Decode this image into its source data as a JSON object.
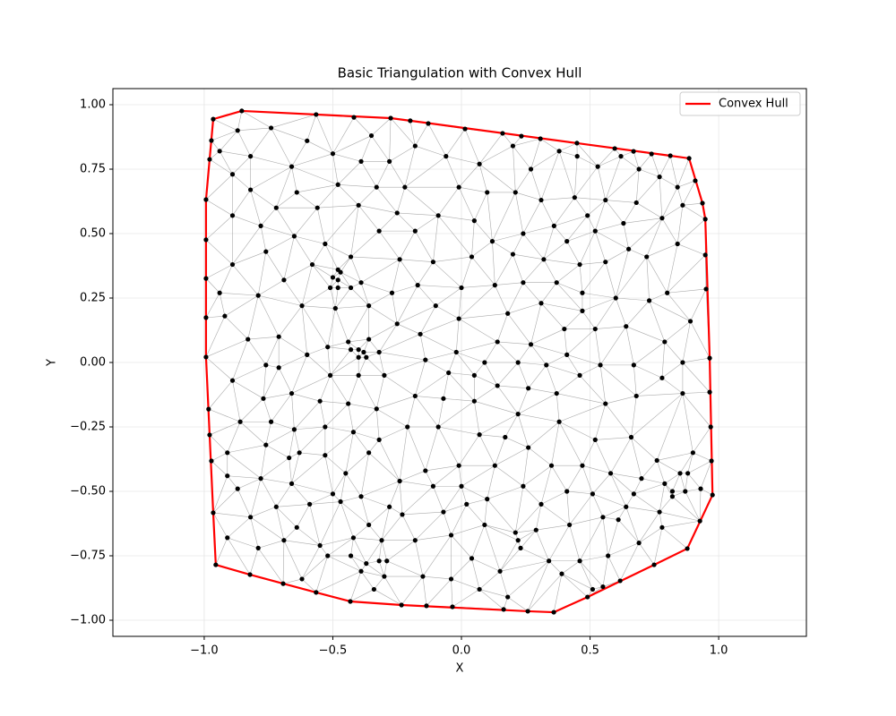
{
  "chart_data": {
    "type": "scatter",
    "title": "Basic Triangulation with Convex Hull",
    "xlabel": "X",
    "ylabel": "Y",
    "x": [
      -0.965,
      -0.854,
      -0.565,
      -0.418,
      -0.275,
      -0.199,
      -0.129,
      0.014,
      0.16,
      0.233,
      0.307,
      0.449,
      0.596,
      0.669,
      0.739,
      0.812,
      0.885,
      0.909,
      0.937,
      0.948,
      0.948,
      0.951,
      0.965,
      0.965,
      0.969,
      0.972,
      0.976,
      0.927,
      0.878,
      0.749,
      0.617,
      0.359,
      0.258,
      0.164,
      -0.035,
      -0.136,
      -0.233,
      -0.432,
      -0.565,
      -0.693,
      -0.822,
      -0.955,
      -0.965,
      -0.972,
      -0.979,
      -0.983,
      -0.993,
      -0.993,
      -0.993,
      -0.993,
      -0.993,
      -0.979,
      -0.972,
      -0.87,
      -0.74,
      -0.6,
      -0.35,
      -0.18,
      0.2,
      -0.5,
      -0.94,
      -0.82,
      -0.66,
      -0.39,
      -0.28,
      -0.06,
      0.07,
      0.27,
      0.38,
      0.45,
      0.53,
      0.62,
      0.69,
      0.77,
      0.84,
      -0.89,
      -0.48,
      -0.33,
      -0.22,
      -0.01,
      0.1,
      0.21,
      0.31,
      0.44,
      0.56,
      0.68,
      0.86,
      -0.82,
      -0.64,
      -0.72,
      -0.56,
      -0.4,
      -0.25,
      -0.09,
      0.05,
      -0.89,
      -0.78,
      0.24,
      0.36,
      0.49,
      0.63,
      0.78,
      -0.32,
      -0.18,
      -0.65,
      -0.53,
      -0.43,
      0.12,
      0.41,
      0.52,
      0.65,
      0.84,
      -0.76,
      -0.89,
      -0.24,
      -0.11,
      0.04,
      0.2,
      0.32,
      0.46,
      0.56,
      0.72,
      -0.69,
      -0.58,
      -0.48,
      -0.47,
      -0.5,
      -0.48,
      -0.51,
      -0.48,
      -0.43,
      -0.39,
      -0.94,
      -0.79,
      -0.27,
      -0.17,
      0,
      0.13,
      0.24,
      0.37,
      0.47,
      0.6,
      0.73,
      0.8,
      -0.92,
      -0.62,
      -0.49,
      -0.36,
      -0.1,
      0.31,
      0.47,
      0.89,
      -0.25,
      -0.01,
      0.18,
      0.52,
      0.64,
      -0.83,
      -0.71,
      -0.44,
      -0.36,
      -0.16,
      0.14,
      0.27,
      0.4,
      0.79,
      -0.6,
      -0.52,
      -0.43,
      -0.4,
      -0.38,
      -0.4,
      -0.37,
      -0.32,
      -0.02,
      -0.14,
      0.09,
      0.22,
      0.33,
      0.41,
      0.54,
      0.67,
      0.86,
      -0.76,
      -0.71,
      -0.89,
      -0.51,
      -0.4,
      -0.3,
      -0.05,
      0.05,
      0.14,
      0.26,
      0.37,
      0.46,
      0.78,
      0.86,
      -0.77,
      -0.66,
      -0.55,
      -0.44,
      -0.18,
      -0.07,
      0.05,
      0.56,
      0.68,
      -0.86,
      -0.74,
      -0.53,
      -0.65,
      -0.33,
      0.22,
      0.38,
      -0.42,
      -0.21,
      -0.09,
      0.07,
      0.17,
      0.52,
      0.66,
      -0.91,
      -0.76,
      -0.63,
      -0.53,
      -0.36,
      -0.32,
      0.26,
      0.35,
      0.47,
      0.76,
      0.9,
      0.88,
      0.85,
      -0.91,
      -0.78,
      -0.67,
      -0.45,
      -0.14,
      -0.01,
      0.13,
      0.58,
      0.7,
      0.79,
      -0.87,
      -0.66,
      -0.5,
      -0.39,
      -0.24,
      -0.11,
      0,
      0.24,
      0.41,
      0.51,
      0.67,
      0.82,
      0.82,
      0.87,
      0.93,
      -0.72,
      -0.59,
      -0.47,
      -0.28,
      -0.07,
      0.02,
      0.1,
      0.31,
      0.64,
      0.77,
      -0.82,
      -0.64,
      -0.36,
      -0.23,
      0.09,
      0.21,
      0.29,
      0.42,
      0.55,
      0.61,
      0.78,
      -0.91,
      -0.79,
      -0.69,
      -0.55,
      -0.42,
      -0.31,
      -0.18,
      -0.04,
      0.22,
      0.69,
      -0.52,
      -0.43,
      0.23,
      0.04,
      0.34,
      0.46,
      0.57,
      -0.39,
      -0.37,
      -0.32,
      -0.29,
      -0.3,
      -0.34,
      -0.15,
      -0.62,
      -0.04,
      0.15,
      0.39,
      0.55,
      0.51,
      0.49,
      0.07,
      0.18
    ],
    "y": [
      0.944,
      0.976,
      0.962,
      0.951,
      0.948,
      0.938,
      0.927,
      0.906,
      0.889,
      0.878,
      0.868,
      0.851,
      0.83,
      0.819,
      0.809,
      0.802,
      0.792,
      0.705,
      0.618,
      0.556,
      0.417,
      0.285,
      0.017,
      -0.115,
      -0.25,
      -0.382,
      -0.514,
      -0.615,
      -0.722,
      -0.785,
      -0.847,
      -0.969,
      -0.965,
      -0.958,
      -0.948,
      -0.944,
      -0.941,
      -0.927,
      -0.892,
      -0.858,
      -0.823,
      -0.785,
      -0.583,
      -0.382,
      -0.281,
      -0.181,
      0.021,
      0.174,
      0.326,
      0.476,
      0.632,
      0.788,
      0.861,
      0.9,
      0.91,
      0.86,
      0.88,
      0.84,
      0.84,
      0.81,
      0.82,
      0.8,
      0.76,
      0.78,
      0.78,
      0.8,
      0.77,
      0.75,
      0.82,
      0.8,
      0.76,
      0.8,
      0.75,
      0.72,
      0.68,
      0.73,
      0.69,
      0.68,
      0.68,
      0.68,
      0.66,
      0.66,
      0.63,
      0.64,
      0.63,
      0.62,
      0.61,
      0.67,
      0.66,
      0.6,
      0.6,
      0.61,
      0.58,
      0.57,
      0.55,
      0.57,
      0.53,
      0.5,
      0.53,
      0.57,
      0.54,
      0.56,
      0.51,
      0.51,
      0.49,
      0.46,
      0.41,
      0.47,
      0.47,
      0.51,
      0.44,
      0.46,
      0.43,
      0.38,
      0.4,
      0.39,
      0.41,
      0.42,
      0.4,
      0.38,
      0.39,
      0.41,
      0.32,
      0.38,
      0.36,
      0.35,
      0.33,
      0.32,
      0.29,
      0.29,
      0.29,
      0.31,
      0.27,
      0.26,
      0.27,
      0.3,
      0.29,
      0.3,
      0.31,
      0.31,
      0.27,
      0.25,
      0.24,
      0.27,
      0.18,
      0.22,
      0.21,
      0.22,
      0.22,
      0.23,
      0.2,
      0.16,
      0.15,
      0.17,
      0.19,
      0.13,
      0.14,
      0.09,
      0.1,
      0.08,
      0.09,
      0.11,
      0.08,
      0.07,
      0.13,
      0.08,
      0.03,
      0.06,
      0.05,
      0.05,
      0.04,
      0.02,
      0.02,
      0.04,
      0.04,
      0.01,
      0,
      0,
      -0.01,
      0.03,
      -0.01,
      -0.01,
      0,
      -0.01,
      -0.02,
      -0.07,
      -0.05,
      -0.05,
      -0.05,
      -0.04,
      -0.05,
      -0.09,
      -0.1,
      -0.12,
      -0.05,
      -0.06,
      -0.12,
      -0.14,
      -0.12,
      -0.15,
      -0.16,
      -0.13,
      -0.14,
      -0.15,
      -0.16,
      -0.13,
      -0.23,
      -0.23,
      -0.25,
      -0.26,
      -0.18,
      -0.2,
      -0.23,
      -0.27,
      -0.25,
      -0.25,
      -0.28,
      -0.29,
      -0.3,
      -0.29,
      -0.35,
      -0.32,
      -0.35,
      -0.36,
      -0.35,
      -0.3,
      -0.33,
      -0.4,
      -0.4,
      -0.38,
      -0.35,
      -0.43,
      -0.43,
      -0.44,
      -0.45,
      -0.37,
      -0.43,
      -0.42,
      -0.4,
      -0.4,
      -0.43,
      -0.45,
      -0.47,
      -0.49,
      -0.47,
      -0.51,
      -0.52,
      -0.46,
      -0.48,
      -0.48,
      -0.48,
      -0.5,
      -0.51,
      -0.51,
      -0.5,
      -0.52,
      -0.5,
      -0.49,
      -0.56,
      -0.55,
      -0.54,
      -0.56,
      -0.58,
      -0.55,
      -0.53,
      -0.55,
      -0.56,
      -0.58,
      -0.6,
      -0.64,
      -0.63,
      -0.59,
      -0.63,
      -0.66,
      -0.65,
      -0.63,
      -0.6,
      -0.61,
      -0.64,
      -0.68,
      -0.72,
      -0.69,
      -0.71,
      -0.68,
      -0.69,
      -0.69,
      -0.67,
      -0.69,
      -0.7,
      -0.75,
      -0.75,
      -0.72,
      -0.76,
      -0.77,
      -0.77,
      -0.75,
      -0.81,
      -0.78,
      -0.77,
      -0.77,
      -0.83,
      -0.88,
      -0.83,
      -0.84,
      -0.84,
      -0.81,
      -0.82,
      -0.87,
      -0.88,
      -0.91,
      -0.88,
      -0.91
    ],
    "color": "black",
    "triangulation_color": "#888888",
    "hull": {
      "name": "Convex Hull",
      "color": "red"
    },
    "xlim": [
      -1.355,
      1.341
    ],
    "ylim": [
      -1.0625,
      1.0625
    ],
    "xticks": [
      {
        "value": -1,
        "label": "−1.0"
      },
      {
        "value": -0.5,
        "label": "−0.5"
      },
      {
        "value": 0,
        "label": "0.0"
      },
      {
        "value": 0.5,
        "label": "0.5"
      },
      {
        "value": 1,
        "label": "1.0"
      }
    ],
    "yticks": [
      {
        "value": -1,
        "label": "−1.00"
      },
      {
        "value": -0.75,
        "label": "−0.75"
      },
      {
        "value": -0.5,
        "label": "−0.50"
      },
      {
        "value": -0.25,
        "label": "−0.25"
      },
      {
        "value": 0,
        "label": "0.00"
      },
      {
        "value": 0.25,
        "label": "0.25"
      },
      {
        "value": 0.5,
        "label": "0.50"
      },
      {
        "value": 0.75,
        "label": "0.75"
      },
      {
        "value": 1,
        "label": "1.00"
      }
    ],
    "grid": true,
    "legend_position": "upper right"
  }
}
